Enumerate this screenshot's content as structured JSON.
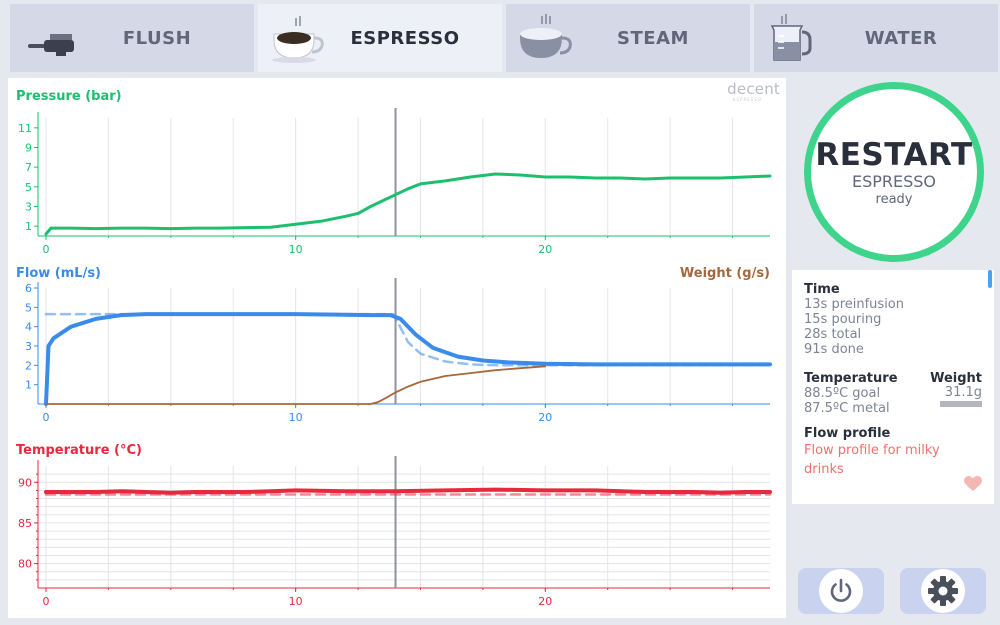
{
  "tabs": [
    {
      "label": "FLUSH",
      "icon": "portafilter-icon",
      "active": false
    },
    {
      "label": "ESPRESSO",
      "icon": "espresso-cup-icon",
      "active": true
    },
    {
      "label": "STEAM",
      "icon": "steam-cup-icon",
      "active": false
    },
    {
      "label": "WATER",
      "icon": "water-jug-icon",
      "active": false
    }
  ],
  "logo": {
    "text": "decent",
    "subtext": "ESPRESSO"
  },
  "restart": {
    "label": "RESTART",
    "subtitle": "ESPRESSO",
    "status": "ready"
  },
  "info": {
    "time": {
      "heading": "Time",
      "lines": [
        "13s preinfusion",
        "15s pouring",
        "28s total",
        "91s done"
      ]
    },
    "temperature": {
      "heading": "Temperature",
      "goal": "88.5ºC goal",
      "metal": "87.5ºC metal"
    },
    "weight": {
      "heading": "Weight",
      "value": "31.1g"
    },
    "profile": {
      "heading": "Flow profile",
      "name": "Flow profile for milky drinks"
    }
  },
  "buttons": {
    "power": "power-icon",
    "settings": "gear-icon"
  },
  "colors": {
    "pressure": "#1cbf6e",
    "flow": "#3a8bea",
    "weight": "#a8673a",
    "temperature": "#e8283e",
    "accent": "#3ed48c",
    "profile_text": "#f2706e"
  },
  "chart_data": [
    {
      "type": "line",
      "title": "Pressure (bar)",
      "xlim": [
        0,
        29
      ],
      "xticks": [
        0,
        10,
        20
      ],
      "ylim": [
        0,
        12
      ],
      "yticks": [
        1,
        3,
        5,
        7,
        9,
        11
      ],
      "marker_x": 14,
      "series": [
        {
          "name": "pressure",
          "x": [
            0,
            0.2,
            1,
            2,
            3,
            4,
            5,
            6,
            7,
            8,
            9,
            10,
            11,
            12,
            12.5,
            13,
            13.5,
            14,
            14.5,
            15,
            16,
            17,
            18,
            19,
            20,
            21,
            22,
            23,
            24,
            25,
            26,
            27,
            28,
            29
          ],
          "y": [
            0.2,
            0.8,
            0.8,
            0.75,
            0.8,
            0.8,
            0.75,
            0.8,
            0.8,
            0.85,
            0.9,
            1.2,
            1.5,
            2.0,
            2.3,
            3.0,
            3.6,
            4.2,
            4.8,
            5.3,
            5.6,
            6.0,
            6.3,
            6.2,
            6.0,
            6.0,
            5.9,
            5.9,
            5.8,
            5.9,
            5.9,
            5.9,
            6.0,
            6.1
          ]
        }
      ]
    },
    {
      "type": "line",
      "title": "Flow (mL/s)",
      "right_title": "Weight (g/s)",
      "xlim": [
        0,
        29
      ],
      "xticks": [
        0,
        10,
        20
      ],
      "ylim": [
        0,
        6
      ],
      "yticks": [
        1,
        2,
        3,
        4,
        5,
        6
      ],
      "marker_x": 14,
      "series": [
        {
          "name": "flow",
          "x": [
            0,
            0.1,
            0.3,
            1,
            2,
            3,
            4,
            6,
            8,
            10,
            12,
            13,
            13.8,
            14.2,
            14.8,
            15.5,
            16.5,
            17.5,
            18.5,
            20,
            22,
            24,
            26,
            29
          ],
          "y": [
            0,
            3.0,
            3.4,
            4.0,
            4.4,
            4.6,
            4.65,
            4.65,
            4.65,
            4.65,
            4.62,
            4.6,
            4.6,
            4.4,
            3.6,
            2.9,
            2.45,
            2.25,
            2.15,
            2.08,
            2.05,
            2.05,
            2.05,
            2.05
          ]
        },
        {
          "name": "flow goal",
          "dashed": true,
          "x": [
            0,
            3,
            13.9,
            14.1,
            14.5,
            15,
            16,
            17,
            18,
            20,
            29
          ],
          "y": [
            4.65,
            4.65,
            4.65,
            4.2,
            3.2,
            2.6,
            2.2,
            2.05,
            2.0,
            2.0,
            2.0
          ]
        },
        {
          "name": "weight",
          "x": [
            0,
            2,
            4,
            6,
            8,
            10,
            12,
            13,
            13.3,
            13.6,
            14,
            14.5,
            15,
            15.5,
            16,
            17,
            18,
            19,
            20
          ],
          "y": [
            0,
            0,
            0,
            0,
            0,
            0,
            0,
            0,
            0.1,
            0.3,
            0.6,
            0.9,
            1.15,
            1.3,
            1.45,
            1.6,
            1.75,
            1.85,
            1.95
          ]
        }
      ]
    },
    {
      "type": "line",
      "title": "Temperature (°C)",
      "xlim": [
        0,
        29
      ],
      "xticks": [
        0,
        10,
        20
      ],
      "ylim": [
        77,
        92
      ],
      "yticks": [
        80,
        85,
        90
      ],
      "marker_x": 14,
      "series": [
        {
          "name": "temperature",
          "x": [
            0,
            2,
            3,
            4,
            5,
            6,
            8,
            9,
            10,
            12,
            14,
            16,
            18,
            20,
            22,
            24,
            26,
            27,
            28,
            29
          ],
          "y": [
            88.8,
            88.8,
            88.9,
            88.8,
            88.7,
            88.8,
            88.8,
            88.9,
            89.0,
            88.9,
            88.9,
            89.0,
            89.1,
            89.0,
            89.0,
            88.8,
            88.8,
            88.7,
            88.8,
            88.8
          ]
        },
        {
          "name": "temperature goal",
          "dashed": true,
          "x": [
            0,
            29
          ],
          "y": [
            88.5,
            88.5
          ]
        }
      ]
    }
  ]
}
